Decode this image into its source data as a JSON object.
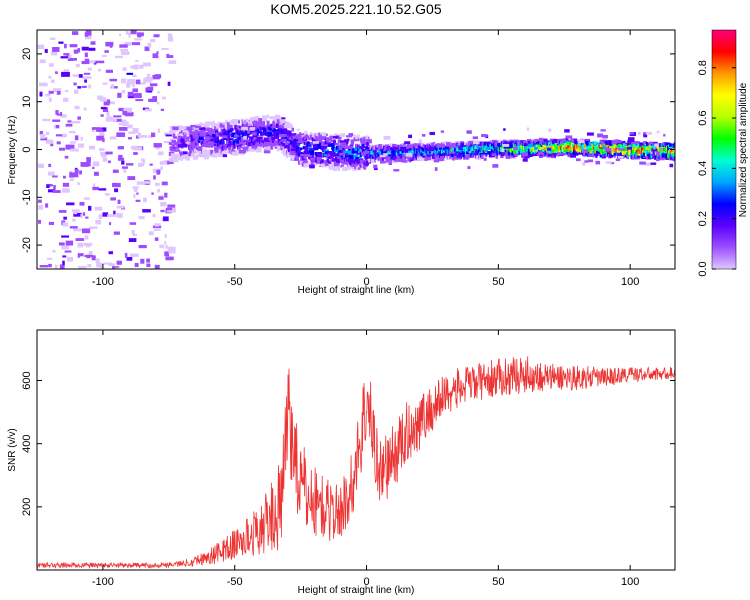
{
  "title": "KOM5.2025.221.10.52.G05",
  "chart_data": [
    {
      "type": "heatmap",
      "title": "KOM5.2025.221.10.52.G05",
      "xlabel": "Height of straight line (km)",
      "ylabel": "Frequency (Hz)",
      "xlim": [
        -125,
        117
      ],
      "ylim": [
        -25,
        25
      ],
      "xticks": [
        -100,
        -50,
        0,
        50,
        100
      ],
      "xtick_labels": [
        "-100",
        "-50",
        "0",
        "50",
        "100"
      ],
      "yticks": [
        20,
        10,
        0,
        -10,
        -20
      ],
      "ytick_labels": [
        "20",
        "10",
        "0",
        "-10",
        "-20"
      ],
      "colorbar": {
        "label": "Normalized spectral amplitude",
        "range": [
          0,
          0.95
        ],
        "ticks": [
          0.0,
          0.2,
          0.4,
          0.6,
          0.8
        ],
        "tick_labels": [
          "0.0",
          "0.2",
          "0.4",
          "0.6",
          "0.8"
        ],
        "colormap": [
          "#e0c6ff",
          "#9d4dff",
          "#5a00ff",
          "#0000ff",
          "#00a6ff",
          "#00ffd0",
          "#00ff00",
          "#b8ff00",
          "#ffff00",
          "#ff9900",
          "#ff0000",
          "#ff007a"
        ]
      },
      "ridge": {
        "x": [
          -75,
          -50,
          -35,
          -25,
          0,
          25,
          50,
          75,
          100,
          117
        ],
        "frequency": [
          1.5,
          3,
          4,
          0.5,
          -0.5,
          0,
          0.5,
          0.8,
          0.3,
          0
        ],
        "amplitude": [
          0.15,
          0.3,
          0.25,
          0.3,
          0.35,
          0.4,
          0.5,
          0.75,
          0.8,
          0.8
        ]
      },
      "noise_region": {
        "x": [
          -125,
          -75
        ],
        "frequency": [
          -25,
          25
        ],
        "amplitude": [
          0,
          0.15
        ]
      }
    },
    {
      "type": "line",
      "xlabel": "Height of straight line (km)",
      "ylabel": "SNR (v/v)",
      "xlim": [
        -125,
        117
      ],
      "ylim": [
        0,
        760
      ],
      "xticks": [
        -100,
        -50,
        0,
        50,
        100
      ],
      "xtick_labels": [
        "-100",
        "-50",
        "0",
        "50",
        "100"
      ],
      "yticks": [
        200,
        400,
        600
      ],
      "ytick_labels": [
        "200",
        "400",
        "600"
      ],
      "series": [
        {
          "name": "SNR",
          "color": "#ee3333",
          "x": [
            -125,
            -100,
            -80,
            -70,
            -60,
            -50,
            -40,
            -32,
            -30,
            -25,
            -20,
            -15,
            -10,
            -5,
            0,
            5,
            10,
            15,
            20,
            25,
            30,
            40,
            50,
            60,
            70,
            80,
            90,
            100,
            110,
            117
          ],
          "y": [
            15,
            15,
            15,
            20,
            40,
            80,
            130,
            210,
            520,
            260,
            220,
            190,
            180,
            280,
            540,
            310,
            350,
            430,
            470,
            510,
            560,
            590,
            610,
            620,
            610,
            610,
            610,
            620,
            620,
            625
          ],
          "noise_amplitude": [
            8,
            8,
            8,
            10,
            25,
            50,
            80,
            150,
            180,
            150,
            120,
            100,
            90,
            110,
            150,
            110,
            110,
            100,
            90,
            80,
            70,
            60,
            60,
            60,
            45,
            40,
            30,
            25,
            20,
            20
          ]
        }
      ]
    }
  ]
}
